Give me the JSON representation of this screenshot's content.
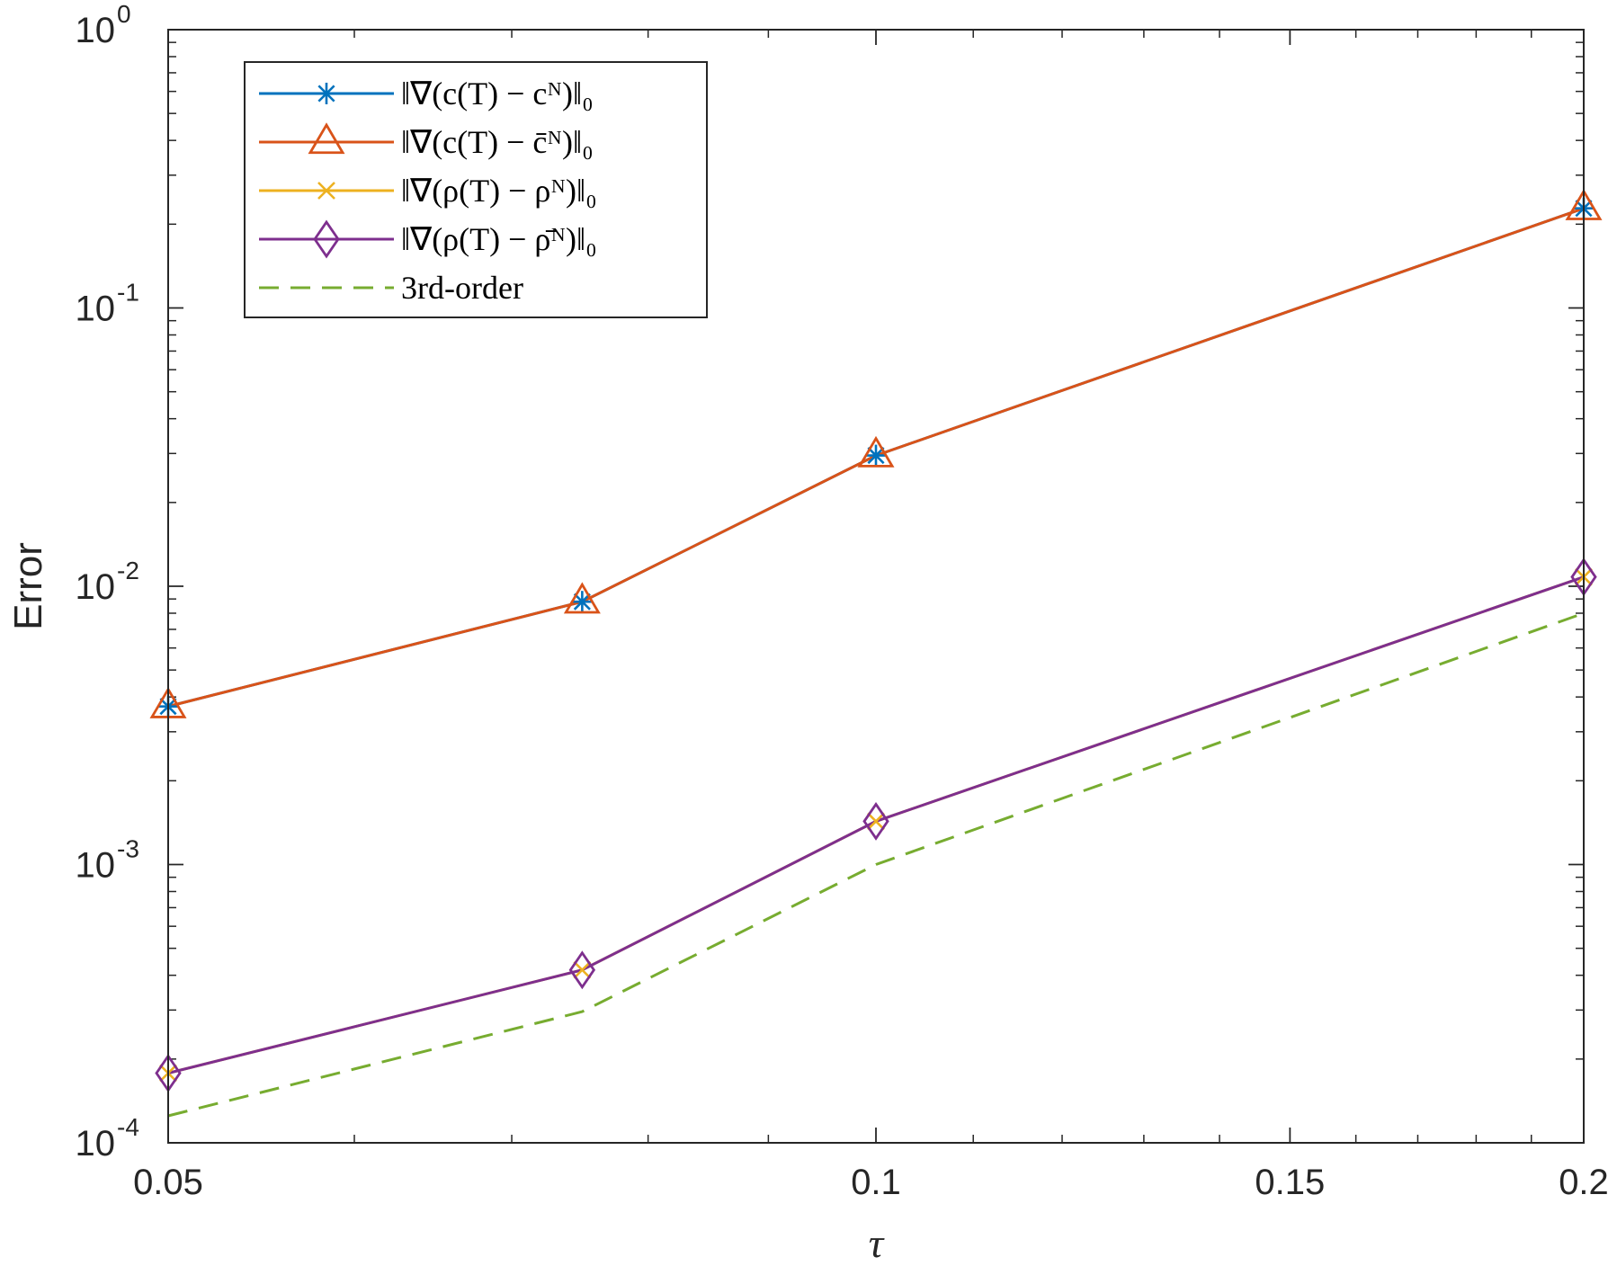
{
  "chart_data": {
    "type": "line",
    "xlabel": "τ",
    "ylabel": "Error",
    "xscale": "log",
    "yscale": "log",
    "xlim": [
      0.05,
      0.2
    ],
    "ylim": [
      0.0001,
      1
    ],
    "grid": false,
    "legend_position": "top-left",
    "x": [
      0.05,
      0.075,
      0.1,
      0.2
    ],
    "xticks": [
      {
        "value": 0.05,
        "label": "0.05"
      },
      {
        "value": 0.1,
        "label": "0.1"
      },
      {
        "value": 0.15,
        "label": "0.15"
      },
      {
        "value": 0.2,
        "label": "0.2"
      }
    ],
    "yticks": [
      {
        "value": 0.0001,
        "base": "10",
        "exp": "-4"
      },
      {
        "value": 0.001,
        "base": "10",
        "exp": "-3"
      },
      {
        "value": 0.01,
        "base": "10",
        "exp": "-2"
      },
      {
        "value": 0.1,
        "base": "10",
        "exp": "-1"
      },
      {
        "value": 1,
        "base": "10",
        "exp": "0"
      }
    ],
    "series": [
      {
        "name": "‖∇(c(T) − cᴺ)‖₀",
        "color": "#0072BD",
        "marker": "asterisk",
        "line": "solid",
        "values": [
          0.0037,
          0.0088,
          0.0295,
          0.228
        ]
      },
      {
        "name": "‖∇(c(T) − c̄ᴺ)‖₀",
        "color": "#D95319",
        "marker": "triangle",
        "line": "solid",
        "values": [
          0.0037,
          0.0088,
          0.0295,
          0.228
        ]
      },
      {
        "name": "‖∇(ρ(T) − ρᴺ)‖₀",
        "color": "#EDB120",
        "marker": "x",
        "line": "solid",
        "values": [
          0.000178,
          0.000418,
          0.00143,
          0.0108
        ]
      },
      {
        "name": "‖∇(ρ(T) − ρ̄ᴺ)‖₀",
        "color": "#7E2F8E",
        "marker": "diamond",
        "line": "solid",
        "values": [
          0.000178,
          0.000418,
          0.00143,
          0.0108
        ]
      },
      {
        "name": "3rd-order",
        "color": "#77AC30",
        "marker": "none",
        "line": "dashed",
        "values": [
          0.000125,
          0.000296,
          0.001,
          0.008
        ]
      }
    ]
  }
}
